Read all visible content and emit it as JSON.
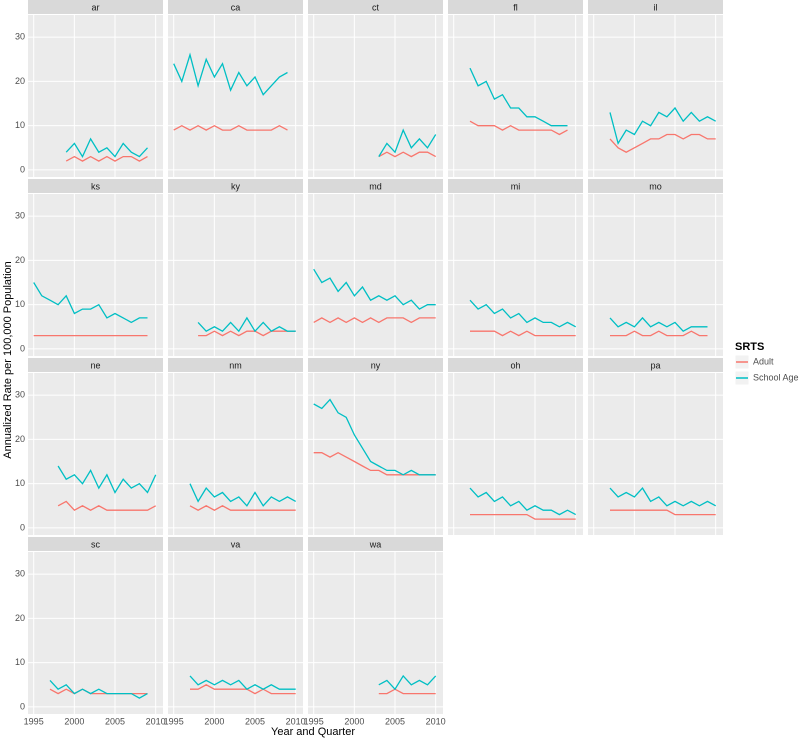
{
  "chart_data": {
    "type": "line",
    "y_label": "Annualized Rate per 100,000 Population",
    "x_label": "Year and Quarter",
    "legend_title": "SRTS",
    "series": [
      {
        "name": "Adult",
        "color": "#F8766D"
      },
      {
        "name": "School Age",
        "color": "#00BFC4"
      }
    ],
    "xlim": [
      1994.3,
      2010.9
    ],
    "xticks": [
      1995,
      2000,
      2005,
      2010
    ],
    "ylim": [
      -1.6,
      35
    ],
    "yticks": [
      0,
      10,
      20,
      30
    ],
    "grid": true,
    "panels": [
      {
        "title": "ar",
        "x": [
          1999,
          2000,
          2001,
          2002,
          2003,
          2004,
          2005,
          2006,
          2007,
          2008,
          2009
        ],
        "values": [
          [
            2,
            3,
            2,
            3,
            2,
            3,
            2,
            3,
            3,
            2,
            3
          ],
          [
            4,
            6,
            3,
            7,
            4,
            5,
            3,
            6,
            4,
            3,
            5
          ]
        ]
      },
      {
        "title": "ca",
        "x": [
          1995,
          1996,
          1997,
          1998,
          1999,
          2000,
          2001,
          2002,
          2003,
          2004,
          2005,
          2006,
          2007,
          2008,
          2009
        ],
        "values": [
          [
            9,
            10,
            9,
            10,
            9,
            10,
            9,
            9,
            10,
            9,
            9,
            9,
            9,
            10,
            9
          ],
          [
            24,
            20,
            26,
            19,
            25,
            21,
            24,
            18,
            22,
            19,
            21,
            17,
            19,
            21,
            22
          ]
        ]
      },
      {
        "title": "ct",
        "x": [
          2003,
          2004,
          2005,
          2006,
          2007,
          2008,
          2009,
          2010
        ],
        "values": [
          [
            3,
            4,
            3,
            4,
            3,
            4,
            4,
            3
          ],
          [
            3,
            6,
            4,
            9,
            5,
            7,
            5,
            8
          ]
        ]
      },
      {
        "title": "fl",
        "x": [
          1997,
          1998,
          1999,
          2000,
          2001,
          2002,
          2003,
          2004,
          2005,
          2006,
          2007,
          2008,
          2009
        ],
        "values": [
          [
            11,
            10,
            10,
            10,
            9,
            10,
            9,
            9,
            9,
            9,
            9,
            8,
            9
          ],
          [
            23,
            19,
            20,
            16,
            17,
            14,
            14,
            12,
            12,
            11,
            10,
            10,
            10
          ]
        ]
      },
      {
        "title": "il",
        "x": [
          1997,
          1998,
          1999,
          2000,
          2001,
          2002,
          2003,
          2004,
          2005,
          2006,
          2007,
          2008,
          2009,
          2010
        ],
        "values": [
          [
            7,
            5,
            4,
            5,
            6,
            7,
            7,
            8,
            8,
            7,
            8,
            8,
            7,
            7
          ],
          [
            13,
            6,
            9,
            8,
            11,
            10,
            13,
            12,
            14,
            11,
            13,
            11,
            12,
            11
          ]
        ]
      },
      {
        "title": "ks",
        "x": [
          1995,
          1996,
          1997,
          1998,
          1999,
          2000,
          2001,
          2002,
          2003,
          2004,
          2005,
          2006,
          2007,
          2008,
          2009
        ],
        "values": [
          [
            3,
            3,
            3,
            3,
            3,
            3,
            3,
            3,
            3,
            3,
            3,
            3,
            3,
            3,
            3
          ],
          [
            15,
            12,
            11,
            10,
            12,
            8,
            9,
            9,
            10,
            7,
            8,
            7,
            6,
            7,
            7
          ]
        ]
      },
      {
        "title": "ky",
        "x": [
          1998,
          1999,
          2000,
          2001,
          2002,
          2003,
          2004,
          2005,
          2006,
          2007,
          2008,
          2009,
          2010
        ],
        "values": [
          [
            3,
            3,
            4,
            3,
            4,
            3,
            4,
            4,
            3,
            4,
            4,
            4,
            4
          ],
          [
            6,
            4,
            5,
            4,
            6,
            4,
            7,
            4,
            6,
            4,
            5,
            4,
            4
          ]
        ]
      },
      {
        "title": "md",
        "x": [
          1995,
          1996,
          1997,
          1998,
          1999,
          2000,
          2001,
          2002,
          2003,
          2004,
          2005,
          2006,
          2007,
          2008,
          2009,
          2010
        ],
        "values": [
          [
            6,
            7,
            6,
            7,
            6,
            7,
            6,
            7,
            6,
            7,
            7,
            7,
            6,
            7,
            7,
            7
          ],
          [
            18,
            15,
            16,
            13,
            15,
            12,
            14,
            11,
            12,
            11,
            12,
            10,
            11,
            9,
            10,
            10
          ]
        ]
      },
      {
        "title": "mi",
        "x": [
          1997,
          1998,
          1999,
          2000,
          2001,
          2002,
          2003,
          2004,
          2005,
          2006,
          2007,
          2008,
          2009,
          2010
        ],
        "values": [
          [
            4,
            4,
            4,
            4,
            3,
            4,
            3,
            4,
            3,
            3,
            3,
            3,
            3,
            3
          ],
          [
            11,
            9,
            10,
            8,
            9,
            7,
            8,
            6,
            7,
            6,
            6,
            5,
            6,
            5
          ]
        ]
      },
      {
        "title": "mo",
        "x": [
          1997,
          1998,
          1999,
          2000,
          2001,
          2002,
          2003,
          2004,
          2005,
          2006,
          2007,
          2008,
          2009
        ],
        "values": [
          [
            3,
            3,
            3,
            4,
            3,
            3,
            4,
            3,
            3,
            3,
            4,
            3,
            3
          ],
          [
            7,
            5,
            6,
            5,
            7,
            5,
            6,
            5,
            6,
            4,
            5,
            5,
            5
          ]
        ]
      },
      {
        "title": "ne",
        "x": [
          1998,
          1999,
          2000,
          2001,
          2002,
          2003,
          2004,
          2005,
          2006,
          2007,
          2008,
          2009,
          2010
        ],
        "values": [
          [
            5,
            6,
            4,
            5,
            4,
            5,
            4,
            4,
            4,
            4,
            4,
            4,
            5
          ],
          [
            14,
            11,
            12,
            10,
            13,
            9,
            12,
            8,
            11,
            9,
            10,
            8,
            12
          ]
        ]
      },
      {
        "title": "nm",
        "x": [
          1997,
          1998,
          1999,
          2000,
          2001,
          2002,
          2003,
          2004,
          2005,
          2006,
          2007,
          2008,
          2009,
          2010
        ],
        "values": [
          [
            5,
            4,
            5,
            4,
            5,
            4,
            4,
            4,
            4,
            4,
            4,
            4,
            4,
            4
          ],
          [
            10,
            6,
            9,
            7,
            8,
            6,
            7,
            5,
            8,
            5,
            7,
            6,
            7,
            6
          ]
        ]
      },
      {
        "title": "ny",
        "x": [
          1995,
          1996,
          1997,
          1998,
          1999,
          2000,
          2001,
          2002,
          2003,
          2004,
          2005,
          2006,
          2007,
          2008,
          2009,
          2010
        ],
        "values": [
          [
            17,
            17,
            16,
            17,
            16,
            15,
            14,
            13,
            13,
            12,
            12,
            12,
            12,
            12,
            12,
            12
          ],
          [
            28,
            27,
            29,
            26,
            25,
            21,
            18,
            15,
            14,
            13,
            13,
            12,
            13,
            12,
            12,
            12
          ]
        ]
      },
      {
        "title": "oh",
        "x": [
          1997,
          1998,
          1999,
          2000,
          2001,
          2002,
          2003,
          2004,
          2005,
          2006,
          2007,
          2008,
          2009,
          2010
        ],
        "values": [
          [
            3,
            3,
            3,
            3,
            3,
            3,
            3,
            3,
            2,
            2,
            2,
            2,
            2,
            2
          ],
          [
            9,
            7,
            8,
            6,
            7,
            5,
            6,
            4,
            5,
            4,
            4,
            3,
            4,
            3
          ]
        ]
      },
      {
        "title": "pa",
        "x": [
          1997,
          1998,
          1999,
          2000,
          2001,
          2002,
          2003,
          2004,
          2005,
          2006,
          2007,
          2008,
          2009,
          2010
        ],
        "values": [
          [
            4,
            4,
            4,
            4,
            4,
            4,
            4,
            4,
            3,
            3,
            3,
            3,
            3,
            3
          ],
          [
            9,
            7,
            8,
            7,
            9,
            6,
            7,
            5,
            6,
            5,
            6,
            5,
            6,
            5
          ]
        ]
      },
      {
        "title": "sc",
        "x": [
          1997,
          1998,
          1999,
          2000,
          2001,
          2002,
          2003,
          2004,
          2005,
          2006,
          2007,
          2008,
          2009
        ],
        "values": [
          [
            4,
            3,
            4,
            3,
            4,
            3,
            3,
            3,
            3,
            3,
            3,
            3,
            3
          ],
          [
            6,
            4,
            5,
            3,
            4,
            3,
            4,
            3,
            3,
            3,
            3,
            2,
            3
          ]
        ]
      },
      {
        "title": "va",
        "x": [
          1997,
          1998,
          1999,
          2000,
          2001,
          2002,
          2003,
          2004,
          2005,
          2006,
          2007,
          2008,
          2009,
          2010
        ],
        "values": [
          [
            4,
            4,
            5,
            4,
            4,
            4,
            4,
            4,
            3,
            4,
            3,
            3,
            3,
            3
          ],
          [
            7,
            5,
            6,
            5,
            6,
            5,
            6,
            4,
            5,
            4,
            5,
            4,
            4,
            4
          ]
        ]
      },
      {
        "title": "wa",
        "x": [
          2003,
          2004,
          2005,
          2006,
          2007,
          2008,
          2009,
          2010
        ],
        "values": [
          [
            3,
            3,
            4,
            3,
            3,
            3,
            3,
            3
          ],
          [
            5,
            6,
            4,
            7,
            5,
            6,
            5,
            7
          ]
        ]
      }
    ]
  }
}
